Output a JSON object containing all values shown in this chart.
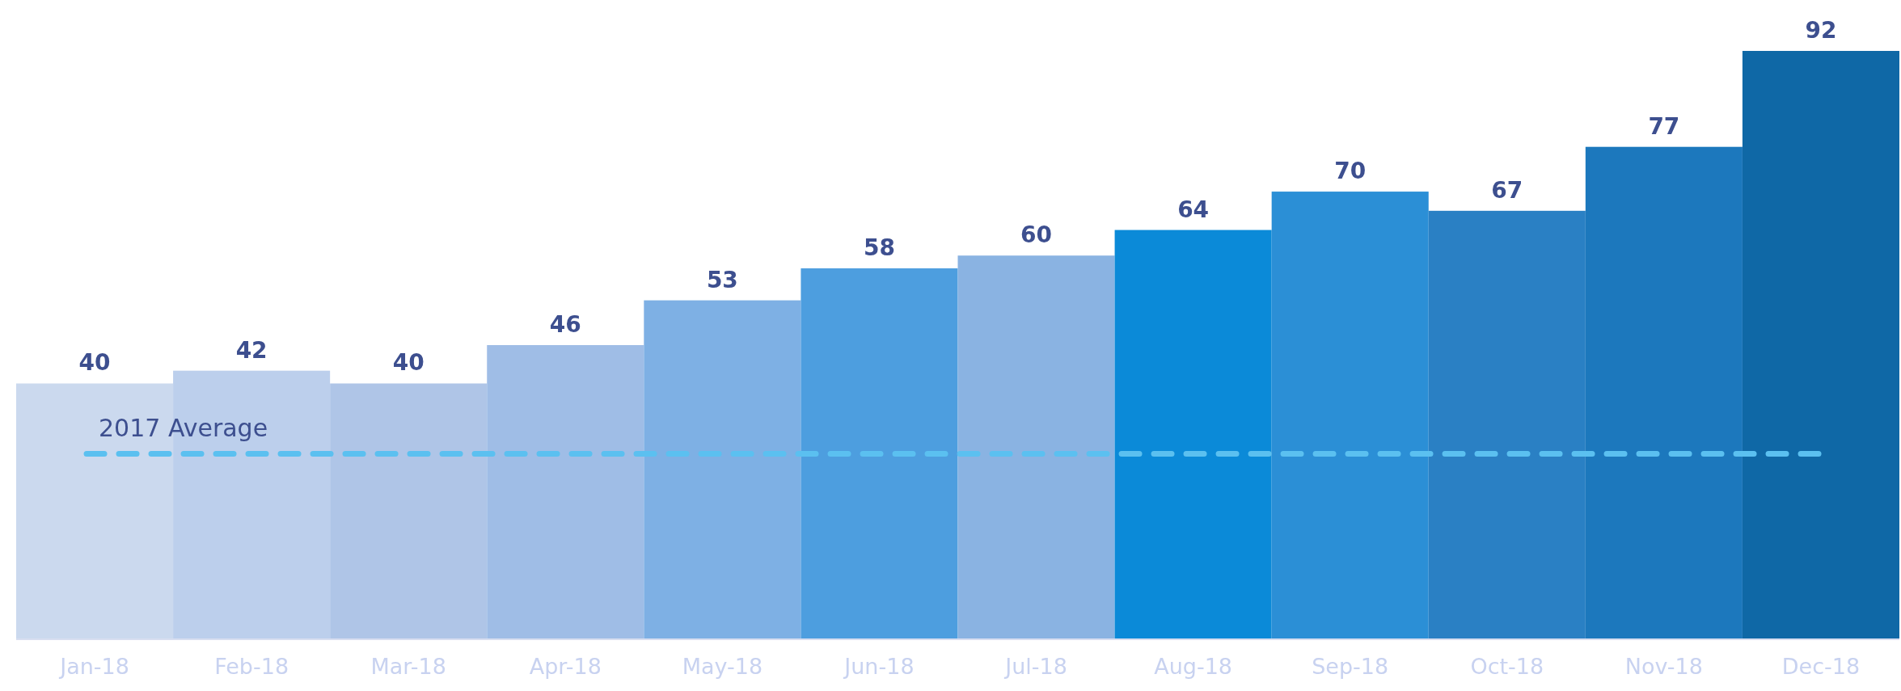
{
  "chart_data": {
    "type": "bar",
    "categories": [
      "Jan-18",
      "Feb-18",
      "Mar-18",
      "Apr-18",
      "May-18",
      "Jun-18",
      "Jul-18",
      "Aug-18",
      "Sep-18",
      "Oct-18",
      "Nov-18",
      "Dec-18"
    ],
    "values": [
      40,
      42,
      40,
      46,
      53,
      58,
      60,
      64,
      70,
      67,
      77,
      92
    ],
    "colors": [
      "#cbd9ee",
      "#bccfec",
      "#afc5e7",
      "#9fbde6",
      "#7eb0e4",
      "#4d9edf",
      "#8ab3e2",
      "#0b8ad8",
      "#2b8fd6",
      "#2a80c4",
      "#1c78bd",
      "#0f68a6"
    ],
    "data_labels": true,
    "ref_lines": [
      {
        "axis": "y",
        "value": 29,
        "label": "2017 Average",
        "color": "#5bc0f0",
        "line_style": "dashed"
      }
    ]
  }
}
